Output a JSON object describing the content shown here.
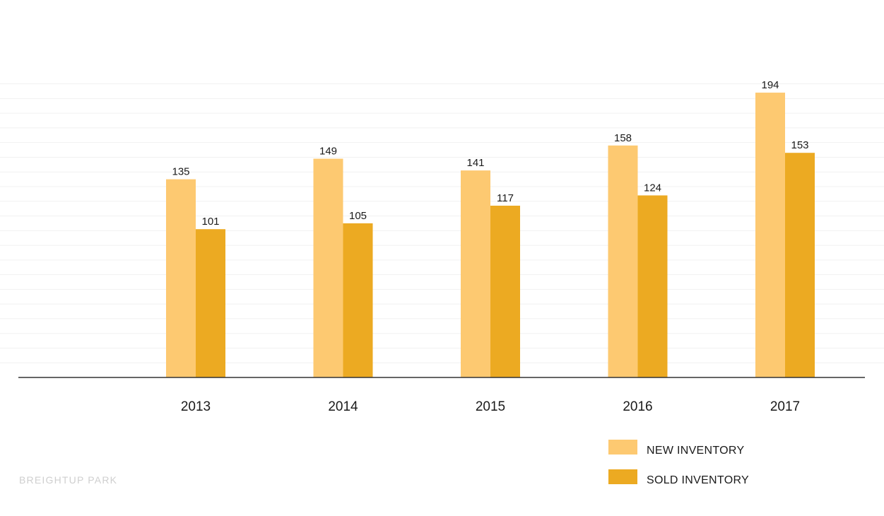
{
  "chart_data": {
    "type": "bar",
    "categories": [
      "2013",
      "2014",
      "2015",
      "2016",
      "2017"
    ],
    "series": [
      {
        "name": "NEW INVENTORY",
        "values": [
          135,
          149,
          141,
          158,
          194
        ],
        "color": "#fdc971"
      },
      {
        "name": "SOLD INVENTORY",
        "values": [
          101,
          105,
          117,
          124,
          153
        ],
        "color": "#ecaa22"
      }
    ],
    "ylim": [
      0,
      200
    ],
    "grid": true,
    "legend": "bottom-right",
    "data_labels": true
  },
  "footer": {
    "brand": "BREIGHTUP PARK"
  },
  "colors": {
    "axis": "#333333",
    "grid": "#f1f1f1",
    "watermark": "#cfcfcf"
  }
}
